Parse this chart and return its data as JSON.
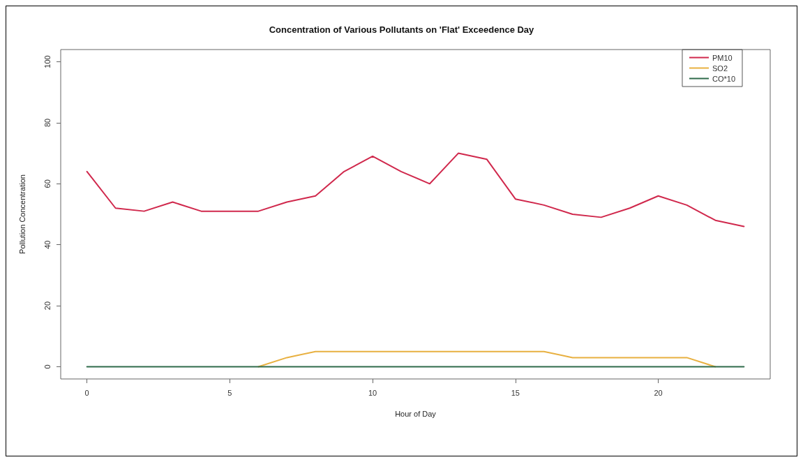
{
  "chart_data": {
    "type": "line",
    "title": "Concentration of Various Pollutants on 'Flat' Exceedence Day",
    "xlabel": "Hour of Day",
    "ylabel": "Pollution Concentration",
    "x": [
      0,
      1,
      2,
      3,
      4,
      5,
      6,
      7,
      8,
      9,
      10,
      11,
      12,
      13,
      14,
      15,
      16,
      17,
      18,
      19,
      20,
      21,
      22,
      23
    ],
    "series": [
      {
        "name": "PM10",
        "color": "#d0284c",
        "values": [
          64,
          52,
          51,
          54,
          51,
          51,
          51,
          54,
          56,
          64,
          69,
          64,
          60,
          70,
          68,
          55,
          53,
          50,
          49,
          52,
          56,
          53,
          48,
          46
        ]
      },
      {
        "name": "SO2",
        "color": "#e8b040",
        "values": [
          null,
          null,
          null,
          null,
          null,
          null,
          0,
          3,
          5,
          5,
          5,
          5,
          5,
          5,
          5,
          5,
          5,
          3,
          3,
          3,
          3,
          3,
          0,
          null
        ]
      },
      {
        "name": "CO*10",
        "color": "#2e6b4a",
        "values": [
          0,
          0,
          0,
          0,
          0,
          0,
          0,
          0,
          0,
          0,
          0,
          0,
          0,
          0,
          0,
          0,
          0,
          0,
          0,
          0,
          0,
          0,
          0,
          0
        ]
      }
    ],
    "xlim": [
      -0.92,
      23.92
    ],
    "xticks": [
      0,
      5,
      10,
      15,
      20
    ],
    "ylim": [
      -4,
      104
    ],
    "yticks": [
      0,
      20,
      40,
      60,
      80,
      100
    ],
    "grid": false,
    "legend": "top right",
    "marker": "none",
    "line_style": "solid"
  }
}
